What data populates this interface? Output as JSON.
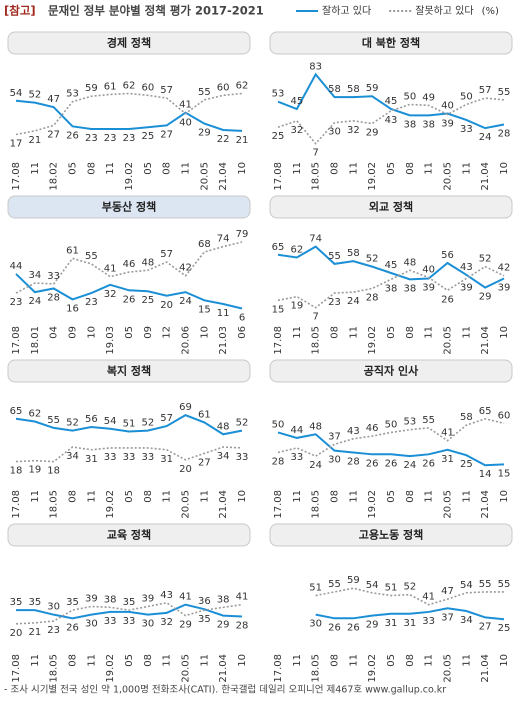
{
  "header": {
    "tag": "[참고]",
    "title": "문재인 정부 분야별 정책 평가 2017-2021",
    "unit": "(%)"
  },
  "footer": "- 조사 시기별 전국 성인 약 1,000명 전화조사(CATI). 한국갤럽 데일리 오피니언 제467호 www.gallup.co.kr",
  "chart_data": [
    {
      "type": "line",
      "title": "경제 정책",
      "highlight": false,
      "ylim": [
        0,
        90
      ],
      "categories": [
        "17.08",
        "11",
        "18.02",
        "05",
        "08",
        "11",
        "19.02",
        "05",
        "08",
        "11",
        "20.05",
        "21.04",
        "10"
      ],
      "series": [
        {
          "name": "잘하고 있다",
          "color": "#1b8fd6",
          "values": [
            54,
            52,
            47,
            26,
            23,
            23,
            23,
            25,
            27,
            41,
            29,
            22,
            21
          ]
        },
        {
          "name": "잘못하고 있다",
          "color": "#9a9a9a",
          "values": [
            17,
            21,
            27,
            53,
            59,
            61,
            62,
            60,
            57,
            40,
            55,
            60,
            62
          ]
        }
      ]
    },
    {
      "type": "line",
      "title": "대 북한 정책",
      "highlight": false,
      "ylim": [
        0,
        90
      ],
      "categories": [
        "17.08",
        "11",
        "18.05",
        "08",
        "11",
        "19.02",
        "05",
        "08",
        "11",
        "20.05",
        "11",
        "21.04",
        "10"
      ],
      "series": [
        {
          "name": "잘하고 있다",
          "color": "#1b8fd6",
          "values": [
            53,
            45,
            83,
            58,
            58,
            59,
            45,
            38,
            38,
            40,
            33,
            24,
            28
          ]
        },
        {
          "name": "잘못하고 있다",
          "color": "#9a9a9a",
          "values": [
            25,
            32,
            7,
            30,
            32,
            29,
            43,
            50,
            49,
            39,
            50,
            57,
            55
          ]
        }
      ]
    },
    {
      "type": "line",
      "title": "부동산 정책",
      "highlight": true,
      "ylim": [
        0,
        90
      ],
      "categories": [
        "17.08",
        "18.01",
        "04",
        "09",
        "10",
        "19.03",
        "05",
        "09",
        "12",
        "20.06",
        "10",
        "21.03",
        "06"
      ],
      "series": [
        {
          "name": "잘하고 있다",
          "color": "#1b8fd6",
          "values": [
            44,
            24,
            28,
            16,
            23,
            32,
            26,
            25,
            20,
            24,
            15,
            11,
            6
          ]
        },
        {
          "name": "잘못하고 있다",
          "color": "#9a9a9a",
          "values": [
            23,
            34,
            33,
            61,
            55,
            41,
            46,
            48,
            57,
            42,
            68,
            74,
            79
          ]
        }
      ]
    },
    {
      "type": "line",
      "title": "외교 정책",
      "highlight": false,
      "ylim": [
        0,
        90
      ],
      "categories": [
        "17.08",
        "11",
        "18.05",
        "08",
        "11",
        "19.02",
        "05",
        "08",
        "11",
        "20.05",
        "11",
        "21.04",
        "10"
      ],
      "series": [
        {
          "name": "잘하고 있다",
          "color": "#1b8fd6",
          "values": [
            65,
            62,
            74,
            55,
            58,
            52,
            45,
            38,
            39,
            56,
            43,
            29,
            39
          ]
        },
        {
          "name": "잘못하고 있다",
          "color": "#9a9a9a",
          "values": [
            15,
            19,
            7,
            23,
            24,
            28,
            38,
            48,
            40,
            26,
            39,
            52,
            42
          ]
        }
      ]
    },
    {
      "type": "line",
      "title": "복지 정책",
      "highlight": false,
      "ylim": [
        0,
        90
      ],
      "categories": [
        "17.08",
        "11",
        "18.05",
        "08",
        "11",
        "19.02",
        "05",
        "08",
        "11",
        "20.05",
        "11",
        "21.04",
        "10"
      ],
      "series": [
        {
          "name": "잘하고 있다",
          "color": "#1b8fd6",
          "values": [
            65,
            62,
            55,
            52,
            56,
            54,
            51,
            52,
            57,
            69,
            61,
            48,
            52
          ]
        },
        {
          "name": "잘못하고 있다",
          "color": "#9a9a9a",
          "values": [
            18,
            19,
            18,
            34,
            31,
            33,
            33,
            33,
            31,
            20,
            27,
            34,
            33
          ]
        }
      ]
    },
    {
      "type": "line",
      "title": "공직자 인사",
      "highlight": false,
      "ylim": [
        0,
        90
      ],
      "categories": [
        "17.08",
        "11",
        "18.05",
        "08",
        "11",
        "19.02",
        "05",
        "08",
        "11",
        "20.05",
        "11",
        "21.04",
        "10"
      ],
      "series": [
        {
          "name": "잘하고 있다",
          "color": "#1b8fd6",
          "values": [
            50,
            44,
            48,
            30,
            28,
            26,
            26,
            24,
            26,
            31,
            25,
            14,
            15
          ]
        },
        {
          "name": "잘못하고 있다",
          "color": "#9a9a9a",
          "values": [
            28,
            33,
            24,
            37,
            43,
            46,
            50,
            53,
            55,
            41,
            58,
            65,
            60
          ]
        }
      ]
    },
    {
      "type": "line",
      "title": "교육 정책",
      "highlight": false,
      "ylim": [
        0,
        90
      ],
      "categories": [
        "17.08",
        "11",
        "18.05",
        "08",
        "11",
        "19.02",
        "05",
        "08",
        "11",
        "20.05",
        "11",
        "21.04",
        "10"
      ],
      "series": [
        {
          "name": "잘하고 있다",
          "color": "#1b8fd6",
          "values": [
            35,
            35,
            30,
            26,
            30,
            33,
            33,
            30,
            32,
            41,
            36,
            29,
            28
          ]
        },
        {
          "name": "잘못하고 있다",
          "color": "#9a9a9a",
          "values": [
            20,
            21,
            23,
            35,
            39,
            38,
            35,
            39,
            43,
            29,
            35,
            38,
            41
          ]
        }
      ]
    },
    {
      "type": "line",
      "title": "고용노동 정책",
      "highlight": false,
      "ylim": [
        0,
        90
      ],
      "categories": [
        "17.08",
        "11",
        "18.05",
        "08",
        "11",
        "19.02",
        "05",
        "08",
        "11",
        "20.05",
        "11",
        "21.04",
        "10"
      ],
      "series": [
        {
          "name": "잘하고 있다",
          "color": "#1b8fd6",
          "values": [
            null,
            null,
            30,
            26,
            26,
            29,
            31,
            31,
            33,
            37,
            34,
            27,
            25
          ]
        },
        {
          "name": "잘못하고 있다",
          "color": "#9a9a9a",
          "values": [
            null,
            null,
            51,
            55,
            59,
            54,
            51,
            52,
            41,
            47,
            54,
            55,
            55
          ]
        }
      ]
    }
  ]
}
